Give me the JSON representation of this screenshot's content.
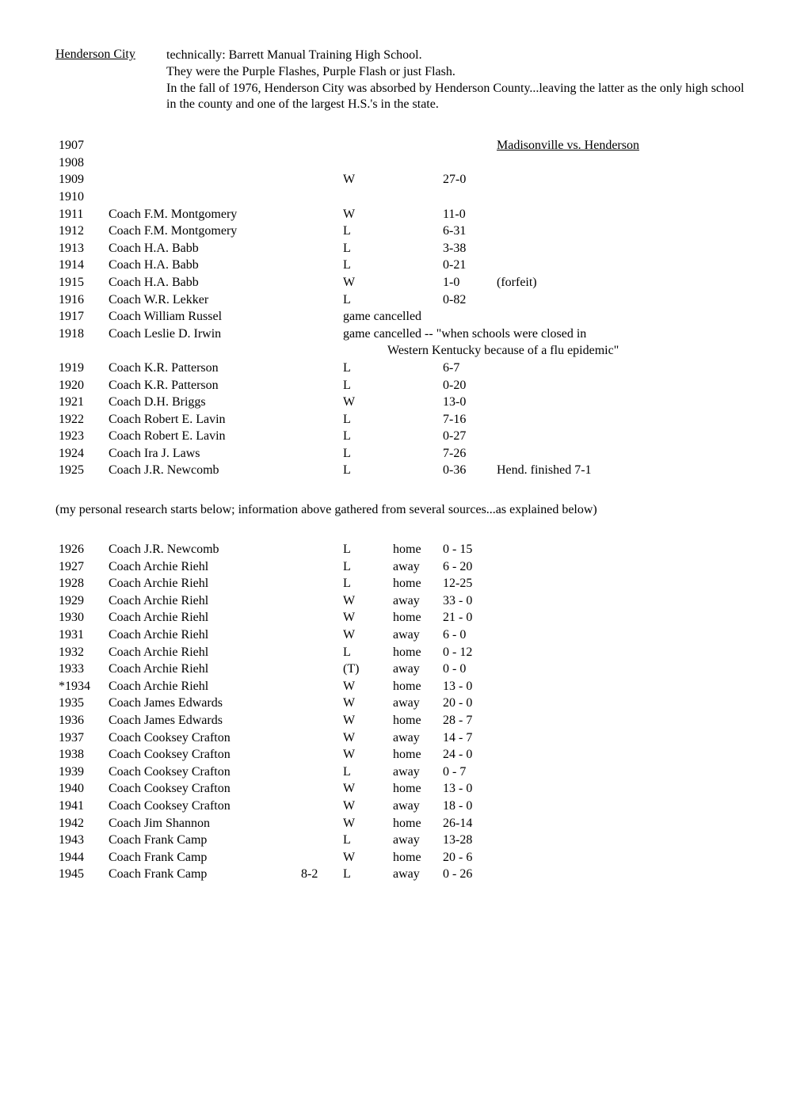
{
  "header": {
    "title": "Henderson City",
    "desc_lines": [
      "technically:  Barrett Manual Training High School.",
      "They were the Purple Flashes, Purple Flash or just Flash.",
      "In the fall of 1976, Henderson City was absorbed by Henderson County...leaving the latter as the only high school in the county and one of the largest H.S.'s in the state."
    ]
  },
  "section1_title": "Madisonville vs. Henderson",
  "section1": [
    {
      "year": "1907",
      "coach": "",
      "result": "",
      "score": "",
      "note_underline": "Madisonville vs. Henderson"
    },
    {
      "year": "1908",
      "coach": "",
      "result": "",
      "score": "",
      "note": ""
    },
    {
      "year": "1909",
      "coach": "",
      "result": "W",
      "score": "27-0",
      "note": ""
    },
    {
      "year": "1910",
      "coach": "",
      "result": "",
      "score": "",
      "note": ""
    },
    {
      "year": "1911",
      "coach": "Coach  F.M. Montgomery",
      "result": "W",
      "score": "11-0",
      "note": ""
    },
    {
      "year": "1912",
      "coach": "Coach  F.M. Montgomery",
      "result": "L",
      "score": "6-31",
      "note": ""
    },
    {
      "year": "1913",
      "coach": "Coach  H.A. Babb",
      "result": "L",
      "score": "3-38",
      "note": ""
    },
    {
      "year": "1914",
      "coach": "Coach  H.A. Babb",
      "result": "L",
      "score": "0-21",
      "note": ""
    },
    {
      "year": "1915",
      "coach": "Coach  H.A. Babb",
      "result": "W",
      "score": "1-0",
      "note": "(forfeit)"
    },
    {
      "year": "1916",
      "coach": "Coach  W.R. Lekker",
      "result": "L",
      "score": "0-82",
      "note": ""
    },
    {
      "year": "1917",
      "coach": "Coach  William Russel",
      "result_span": "game cancelled"
    },
    {
      "year": "1918",
      "coach": "Coach  Leslie D. Irwin",
      "result_span": "game cancelled  --  \"when schools were closed in",
      "cont": "Western Kentucky because of a flu epidemic\""
    },
    {
      "year": "1919",
      "coach": "Coach  K.R. Patterson",
      "result": "L",
      "score": "6-7",
      "note": ""
    },
    {
      "year": "1920",
      "coach": "Coach  K.R. Patterson",
      "result": "L",
      "score": "0-20",
      "note": ""
    },
    {
      "year": "1921",
      "coach": "Coach  D.H. Briggs",
      "result": "W",
      "score": "13-0",
      "note": ""
    },
    {
      "year": "1922",
      "coach": "Coach  Robert E. Lavin",
      "result": "L",
      "score": "7-16",
      "note": ""
    },
    {
      "year": "1923",
      "coach": "Coach  Robert E. Lavin",
      "result": "L",
      "score": "0-27",
      "note": ""
    },
    {
      "year": "1924",
      "coach": "Coach  Ira J. Laws",
      "result": "L",
      "score": "7-26",
      "note": ""
    },
    {
      "year": "1925",
      "coach": "Coach  J.R. Newcomb",
      "result": "L",
      "score": "0-36",
      "note": "Hend. finished 7-1"
    }
  ],
  "mid_note": "(my personal research starts below; information above gathered from several sources...as explained below)",
  "section2": [
    {
      "year": "1926",
      "coach": "Coach  J.R. Newcomb",
      "rec": "",
      "result": "L",
      "loc": "home",
      "score": "0 - 15"
    },
    {
      "year": "1927",
      "coach": "Coach  Archie Riehl",
      "rec": "",
      "result": "L",
      "loc": "away",
      "score": "6 - 20"
    },
    {
      "year": "1928",
      "coach": "Coach  Archie Riehl",
      "rec": "",
      "result": " L",
      "loc": "home",
      "score": "12-25"
    },
    {
      "year": "1929",
      "coach": "Coach  Archie Riehl",
      "rec": "",
      "result": "W",
      "loc": "away",
      "score": "33 - 0"
    },
    {
      "year": "1930",
      "coach": "Coach  Archie Riehl",
      "rec": "",
      "result": "W",
      "loc": "home",
      "score": "21 - 0"
    },
    {
      "year": "1931",
      "coach": "Coach  Archie Riehl",
      "rec": "",
      "result": "W",
      "loc": "away",
      "score": "6 - 0"
    },
    {
      "year": "1932",
      "coach": "Coach  Archie Riehl",
      "rec": "",
      "result": " L",
      "loc": "home",
      "score": "0 - 12"
    },
    {
      "year": "1933",
      "coach": "Coach  Archie Riehl",
      "rec": "",
      "result": "(T)",
      "loc": "away",
      "score": "0 - 0"
    },
    {
      "year": "*1934",
      "coach": "Coach  Archie Riehl",
      "rec": "",
      "result": "W",
      "loc": "home",
      "score": "13 - 0"
    },
    {
      "year": "1935",
      "coach": "Coach  James Edwards",
      "rec": "",
      "result": "W",
      "loc": "away",
      "score": "20 - 0"
    },
    {
      "year": "1936",
      "coach": "Coach  James Edwards",
      "rec": "",
      "result": "W",
      "loc": "home",
      "score": "28 - 7"
    },
    {
      "year": "1937",
      "coach": "Coach  Cooksey Crafton",
      "rec": "",
      "result": "W",
      "loc": "away",
      "score": "14 - 7"
    },
    {
      "year": "1938",
      "coach": "Coach  Cooksey Crafton",
      "rec": "",
      "result": "W",
      "loc": "home",
      "score": "24 - 0"
    },
    {
      "year": "1939",
      "coach": "Coach  Cooksey Crafton",
      "rec": "",
      "result": "L",
      "loc": "away",
      "score": "0 - 7"
    },
    {
      "year": "1940",
      "coach": "Coach  Cooksey Crafton",
      "rec": "",
      "result": "W",
      "loc": "home",
      "score": "13 - 0"
    },
    {
      "year": "1941",
      "coach": "Coach  Cooksey Crafton",
      "rec": "",
      "result": "W",
      "loc": "away",
      "score": "18 - 0"
    },
    {
      "year": "1942",
      "coach": "Coach  Jim Shannon",
      "rec": "",
      "result": "W",
      "loc": "home",
      "score": "26-14"
    },
    {
      "year": "1943",
      "coach": "Coach  Frank Camp",
      "rec": "",
      "result": "L",
      "loc": "away",
      "score": "13-28"
    },
    {
      "year": "1944",
      "coach": "Coach  Frank Camp",
      "rec": "",
      "result": "W",
      "loc": "home",
      "score": "20 - 6"
    },
    {
      "year": "1945",
      "coach": "Coach  Frank Camp",
      "rec": "8-2",
      "result": "L",
      "loc": "away",
      "score": "0 - 26"
    }
  ]
}
